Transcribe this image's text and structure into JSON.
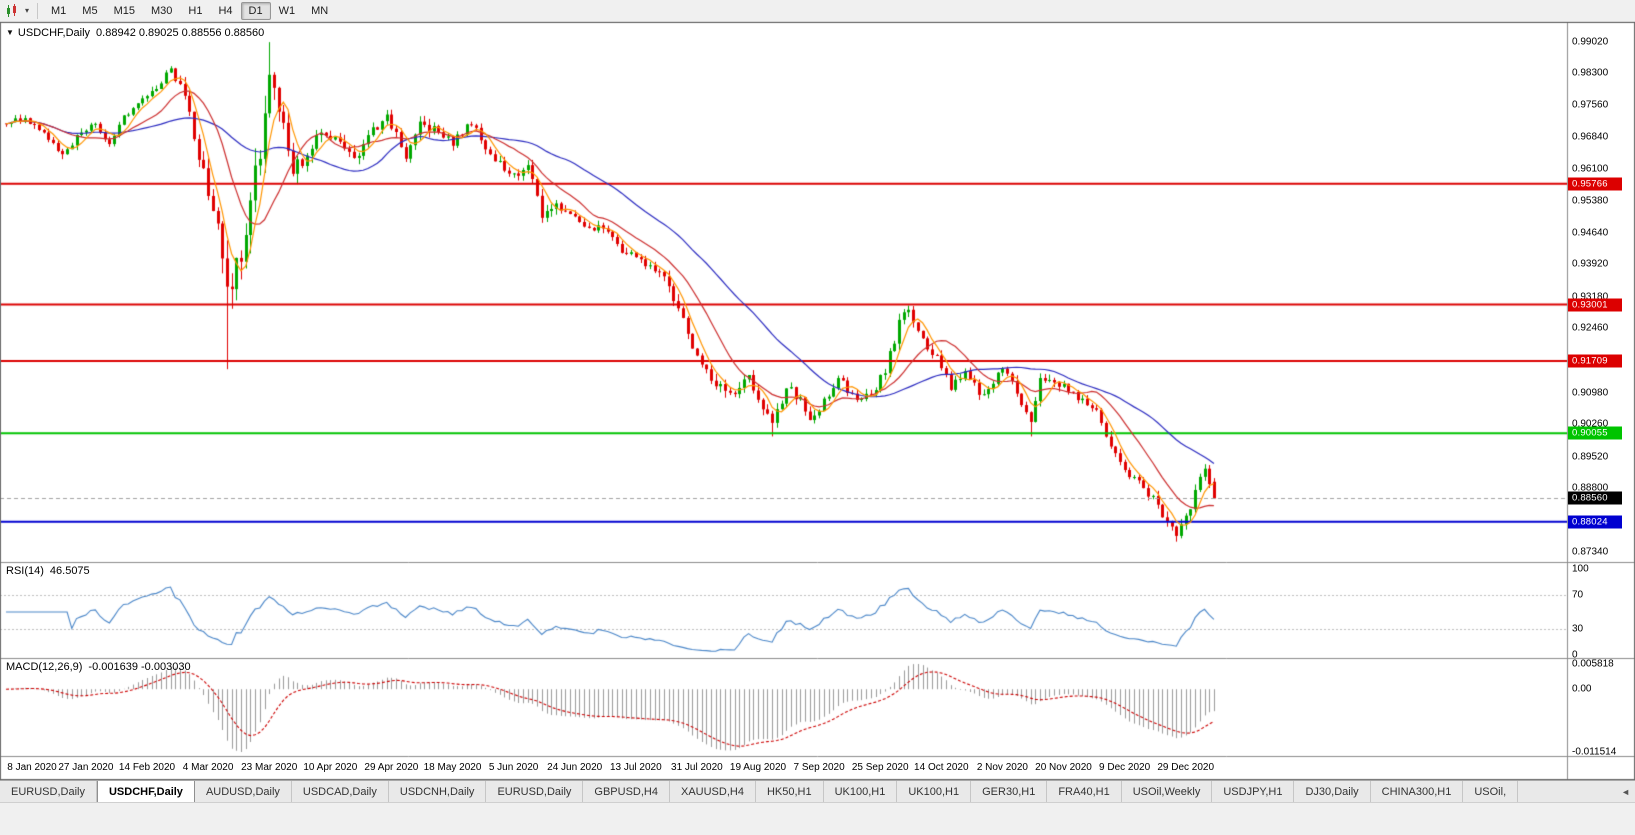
{
  "toolbar": {
    "timeframes": [
      {
        "label": "M1",
        "active": false
      },
      {
        "label": "M5",
        "active": false
      },
      {
        "label": "M15",
        "active": false
      },
      {
        "label": "M30",
        "active": false
      },
      {
        "label": "H1",
        "active": false
      },
      {
        "label": "H4",
        "active": false
      },
      {
        "label": "D1",
        "active": true
      },
      {
        "label": "W1",
        "active": false
      },
      {
        "label": "MN",
        "active": false
      }
    ]
  },
  "chart": {
    "title_symbol": "USDCHF,Daily",
    "title_ohlc": "0.88942 0.89025 0.88556 0.88560",
    "price_axis_labels": [
      "0.99020",
      "0.98300",
      "0.97560",
      "0.96840",
      "0.96100",
      "0.95380",
      "0.94640",
      "0.93920",
      "0.93180",
      "0.92460",
      "0.91720",
      "0.90980",
      "0.90260",
      "0.89520",
      "0.88800",
      "0.88060",
      "0.87340"
    ],
    "levels": [
      {
        "value": 0.95766,
        "label": "0.95766",
        "color": "#DC0000"
      },
      {
        "value": 0.93001,
        "label": "0.93001",
        "color": "#DC0000"
      },
      {
        "value": 0.91709,
        "label": "0.91709",
        "color": "#DC0000"
      },
      {
        "value": 0.90055,
        "label": "0.90055",
        "color": "#00C400"
      },
      {
        "value": 0.88024,
        "label": "0.88024",
        "color": "#0000D0"
      }
    ],
    "current_price": {
      "value": 0.8856,
      "label": "0.88560",
      "badge_color": "#000000"
    },
    "x_labels": [
      {
        "text": "8 Jan 2020",
        "i": 4
      },
      {
        "text": "27 Jan 2020",
        "i": 17
      },
      {
        "text": "14 Feb 2020",
        "i": 30
      },
      {
        "text": "4 Mar 2020",
        "i": 43
      },
      {
        "text": "23 Mar 2020",
        "i": 56
      },
      {
        "text": "10 Apr 2020",
        "i": 69
      },
      {
        "text": "29 Apr 2020",
        "i": 82
      },
      {
        "text": "18 May 2020",
        "i": 95
      },
      {
        "text": "5 Jun 2020",
        "i": 108
      },
      {
        "text": "24 Jun 2020",
        "i": 121
      },
      {
        "text": "13 Jul 2020",
        "i": 134
      },
      {
        "text": "31 Jul 2020",
        "i": 147
      },
      {
        "text": "19 Aug 2020",
        "i": 160
      },
      {
        "text": "7 Sep 2020",
        "i": 173
      },
      {
        "text": "25 Sep 2020",
        "i": 186
      },
      {
        "text": "14 Oct 2020",
        "i": 199
      },
      {
        "text": "2 Nov 2020",
        "i": 212
      },
      {
        "text": "20 Nov 2020",
        "i": 225
      },
      {
        "text": "9 Dec 2020",
        "i": 238
      },
      {
        "text": "29 Dec 2020",
        "i": 251
      }
    ]
  },
  "rsi": {
    "title": "RSI(14)",
    "value": "46.5075",
    "axis_labels": [
      {
        "text": "100",
        "v": 100
      },
      {
        "text": "70",
        "v": 70
      },
      {
        "text": "30",
        "v": 30
      },
      {
        "text": "0",
        "v": 0
      }
    ],
    "level_lines": [
      70,
      30
    ]
  },
  "macd": {
    "title": "MACD(12,26,9)",
    "values": "-0.001639 -0.003030",
    "axis_top_label": "0.005818",
    "axis_zero_label": "0.00",
    "axis_bottom_label": "-0.011514"
  },
  "tabs": [
    {
      "label": "EURUSD,Daily",
      "active": false
    },
    {
      "label": "USDCHF,Daily",
      "active": true
    },
    {
      "label": "AUDUSD,Daily",
      "active": false
    },
    {
      "label": "USDCAD,Daily",
      "active": false
    },
    {
      "label": "USDCNH,Daily",
      "active": false
    },
    {
      "label": "EURUSD,Daily",
      "active": false
    },
    {
      "label": "GBPUSD,H4",
      "active": false
    },
    {
      "label": "XAUUSD,H4",
      "active": false
    },
    {
      "label": "HK50,H1",
      "active": false
    },
    {
      "label": "UK100,H1",
      "active": false
    },
    {
      "label": "UK100,H1",
      "active": false
    },
    {
      "label": "GER30,H1",
      "active": false
    },
    {
      "label": "FRA40,H1",
      "active": false
    },
    {
      "label": "USOil,Weekly",
      "active": false
    },
    {
      "label": "USDJPY,H1",
      "active": false
    },
    {
      "label": "DJ30,Daily",
      "active": false
    },
    {
      "label": "CHINA300,H1",
      "active": false
    },
    {
      "label": "USOil,",
      "active": false
    }
  ],
  "tab_scroll_icon": "◄",
  "colors": {
    "up": "#00A800",
    "down": "#E00000",
    "ma_fast": "#FF9500",
    "ma_mid": "#CC2E2E",
    "ma_slow": "#2A2AC0",
    "rsi": "#4A86C8",
    "rsi_levels": "#BDBDBD",
    "macd_hist": "#9A9A9A",
    "macd_signal": "#CC0000",
    "bid_line": "#A0A0A0",
    "frame": "#6A6A6A"
  },
  "chart_data": {
    "type": "candlestick",
    "symbol": "USDCHF",
    "timeframe": "Daily",
    "candle_count": 258,
    "seed": 77,
    "ylim": [
      0.8715,
      0.9938
    ],
    "last_candle": {
      "o": 0.88942,
      "h": 0.89025,
      "l": 0.88556,
      "c": 0.8856
    },
    "price_path_anchors": [
      [
        0,
        0.9715,
        0.0016
      ],
      [
        4,
        0.9727,
        0.0016
      ],
      [
        8,
        0.97,
        0.0018
      ],
      [
        12,
        0.9641,
        0.0018
      ],
      [
        16,
        0.9694,
        0.002
      ],
      [
        19,
        0.9713,
        0.0016
      ],
      [
        22,
        0.9662,
        0.002
      ],
      [
        25,
        0.9734,
        0.0018
      ],
      [
        30,
        0.9776,
        0.0016
      ],
      [
        33,
        0.9814,
        0.0018
      ],
      [
        35,
        0.9838,
        0.002
      ],
      [
        38,
        0.9778,
        0.0028
      ],
      [
        41,
        0.9642,
        0.0038
      ],
      [
        43,
        0.9562,
        0.0048
      ],
      [
        45,
        0.9462,
        0.0062
      ],
      [
        47,
        0.931,
        0.0085
      ],
      [
        49,
        0.9392,
        0.0075
      ],
      [
        51,
        0.946,
        0.007
      ],
      [
        54,
        0.9648,
        0.0078
      ],
      [
        56,
        0.9818,
        0.0072
      ],
      [
        58,
        0.9752,
        0.0055
      ],
      [
        61,
        0.9602,
        0.0046
      ],
      [
        64,
        0.9642,
        0.0036
      ],
      [
        67,
        0.9706,
        0.003
      ],
      [
        71,
        0.9662,
        0.0028
      ],
      [
        74,
        0.9632,
        0.0026
      ],
      [
        78,
        0.9696,
        0.0026
      ],
      [
        81,
        0.9731,
        0.0024
      ],
      [
        85,
        0.9641,
        0.0028
      ],
      [
        88,
        0.9712,
        0.0026
      ],
      [
        92,
        0.9696,
        0.0022
      ],
      [
        95,
        0.9671,
        0.002
      ],
      [
        99,
        0.9716,
        0.002
      ],
      [
        103,
        0.9641,
        0.002
      ],
      [
        106,
        0.9611,
        0.002
      ],
      [
        109,
        0.9591,
        0.0022
      ],
      [
        111,
        0.9618,
        0.002
      ],
      [
        114,
        0.9506,
        0.0026
      ],
      [
        117,
        0.9526,
        0.0022
      ],
      [
        121,
        0.9506,
        0.002
      ],
      [
        124,
        0.9476,
        0.002
      ],
      [
        128,
        0.9471,
        0.0018
      ],
      [
        131,
        0.9421,
        0.002
      ],
      [
        134,
        0.9416,
        0.002
      ],
      [
        137,
        0.9386,
        0.002
      ],
      [
        140,
        0.9361,
        0.0022
      ],
      [
        143,
        0.9291,
        0.0028
      ],
      [
        146,
        0.9201,
        0.003
      ],
      [
        149,
        0.9141,
        0.003
      ],
      [
        152,
        0.9106,
        0.0028
      ],
      [
        155,
        0.9096,
        0.0024
      ],
      [
        158,
        0.9131,
        0.0024
      ],
      [
        161,
        0.9061,
        0.0026
      ],
      [
        163,
        0.9022,
        0.0028
      ],
      [
        166,
        0.9111,
        0.0024
      ],
      [
        169,
        0.9081,
        0.0022
      ],
      [
        171,
        0.9036,
        0.0022
      ],
      [
        173,
        0.9066,
        0.0022
      ],
      [
        177,
        0.9131,
        0.0022
      ],
      [
        180,
        0.9091,
        0.002
      ],
      [
        184,
        0.9086,
        0.002
      ],
      [
        187,
        0.9151,
        0.0022
      ],
      [
        190,
        0.9256,
        0.0026
      ],
      [
        192,
        0.9291,
        0.0024
      ],
      [
        195,
        0.9216,
        0.0022
      ],
      [
        199,
        0.9161,
        0.002
      ],
      [
        201,
        0.9106,
        0.0022
      ],
      [
        204,
        0.9146,
        0.002
      ],
      [
        208,
        0.9086,
        0.002
      ],
      [
        212,
        0.9156,
        0.002
      ],
      [
        215,
        0.9101,
        0.0022
      ],
      [
        218,
        0.9021,
        0.0028
      ],
      [
        220,
        0.9141,
        0.003
      ],
      [
        223,
        0.9126,
        0.002
      ],
      [
        225,
        0.9111,
        0.0018
      ],
      [
        228,
        0.9086,
        0.0018
      ],
      [
        231,
        0.9066,
        0.002
      ],
      [
        233,
        0.9036,
        0.0022
      ],
      [
        235,
        0.8976,
        0.0024
      ],
      [
        238,
        0.8926,
        0.0022
      ],
      [
        241,
        0.8891,
        0.002
      ],
      [
        244,
        0.8856,
        0.002
      ],
      [
        247,
        0.8801,
        0.0024
      ],
      [
        249,
        0.8776,
        0.0022
      ],
      [
        250,
        0.8801,
        0.0022
      ],
      [
        252,
        0.8841,
        0.0022
      ],
      [
        254,
        0.8896,
        0.0024
      ],
      [
        255,
        0.8926,
        0.0022
      ],
      [
        256,
        0.8894,
        0.002
      ],
      [
        257,
        0.8856,
        0.002
      ]
    ],
    "extremes": [
      {
        "i": 12,
        "low": 0.9633
      },
      {
        "i": 35,
        "high": 0.9846
      },
      {
        "i": 47,
        "low": 0.9152
      },
      {
        "i": 56,
        "high": 0.9901
      },
      {
        "i": 163,
        "low": 0.8998
      },
      {
        "i": 218,
        "low": 0.8998
      },
      {
        "i": 249,
        "low": 0.8757
      }
    ],
    "moving_averages": [
      {
        "period": 5,
        "color": "#FF9500"
      },
      {
        "period": 13,
        "color": "#CC2E2E"
      },
      {
        "period": 34,
        "color": "#2A2AC0"
      }
    ],
    "indicators": [
      {
        "name": "RSI",
        "period": 14,
        "current": 46.5075
      },
      {
        "name": "MACD",
        "fast": 12,
        "slow": 26,
        "signal": 9,
        "current_macd": -0.001639,
        "current_signal": -0.00303
      }
    ]
  }
}
